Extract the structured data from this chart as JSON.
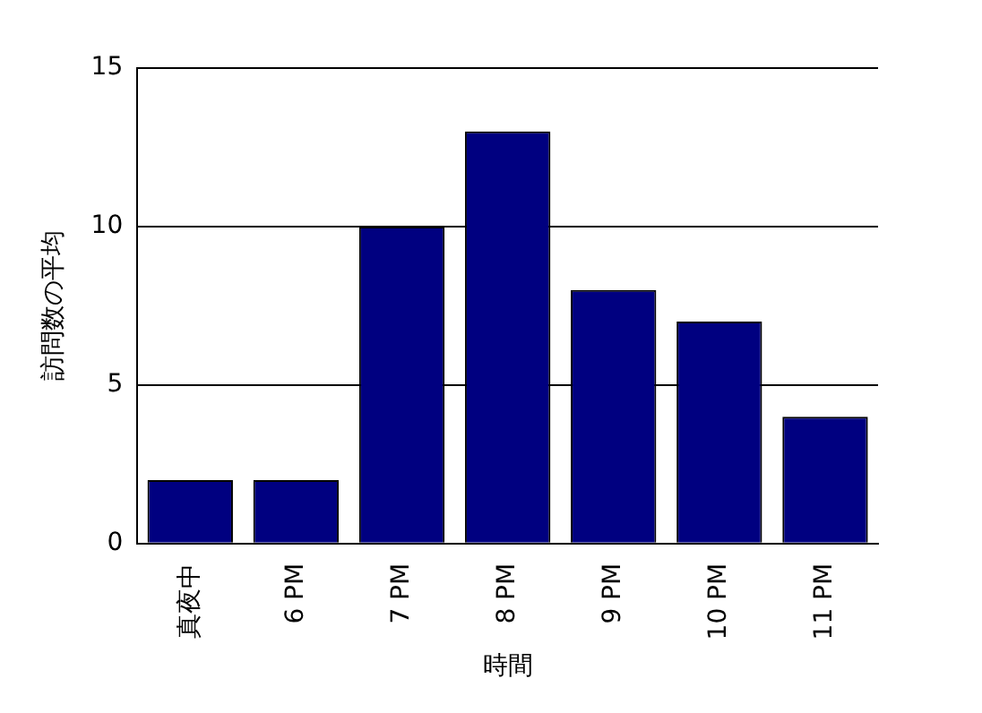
{
  "chart_data": {
    "type": "bar",
    "xlabel": "時間",
    "ylabel": "訪問数の平均",
    "categories": [
      "真夜中",
      "6 PM",
      "7 PM",
      "8 PM",
      "9 PM",
      "10 PM",
      "11 PM"
    ],
    "values": [
      2,
      2,
      10,
      13,
      8,
      7,
      4
    ],
    "color": "#000080",
    "ylim": [
      0,
      15
    ],
    "yticks": [
      0,
      5,
      10,
      15
    ],
    "grid": "y"
  }
}
